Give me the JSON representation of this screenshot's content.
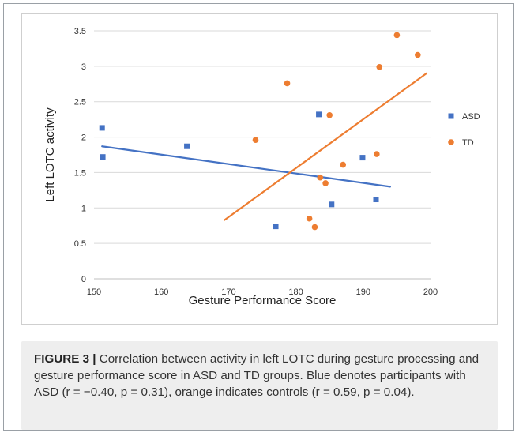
{
  "chart_data": {
    "type": "scatter",
    "xlabel": "Gesture Performance Score",
    "ylabel": "Left LOTC activity",
    "xlim": [
      150,
      200
    ],
    "ylim": [
      0,
      3.5
    ],
    "x_ticks": [
      150,
      160,
      170,
      180,
      190,
      200
    ],
    "y_ticks": [
      0,
      0.5,
      1,
      1.5,
      2,
      2.5,
      3,
      3.5
    ],
    "x_tick_labels": [
      "150",
      "160",
      "170",
      "180",
      "190",
      "200"
    ],
    "y_tick_labels": [
      "0",
      "0.5",
      "1",
      "1.5",
      "2",
      "2.5",
      "3",
      "3.5"
    ],
    "grid": "horizontal",
    "legend_position": "right",
    "series": [
      {
        "name": "ASD",
        "color": "#4472c4",
        "marker": "square",
        "points": [
          {
            "x": 151.2,
            "y": 2.13
          },
          {
            "x": 151.3,
            "y": 1.72
          },
          {
            "x": 163.8,
            "y": 1.87
          },
          {
            "x": 177.0,
            "y": 0.74
          },
          {
            "x": 183.4,
            "y": 2.32
          },
          {
            "x": 185.3,
            "y": 1.05
          },
          {
            "x": 189.9,
            "y": 1.71
          },
          {
            "x": 191.9,
            "y": 1.12
          }
        ],
        "trendline": {
          "x": [
            151.2,
            194.0
          ],
          "y": [
            1.87,
            1.3
          ]
        }
      },
      {
        "name": "TD",
        "color": "#ed7d31",
        "marker": "circle",
        "points": [
          {
            "x": 174.0,
            "y": 1.96
          },
          {
            "x": 178.7,
            "y": 2.76
          },
          {
            "x": 182.0,
            "y": 0.85
          },
          {
            "x": 182.8,
            "y": 0.73
          },
          {
            "x": 183.6,
            "y": 1.43
          },
          {
            "x": 184.4,
            "y": 1.35
          },
          {
            "x": 185.0,
            "y": 2.31
          },
          {
            "x": 187.0,
            "y": 1.61
          },
          {
            "x": 192.0,
            "y": 1.76
          },
          {
            "x": 192.4,
            "y": 2.99
          },
          {
            "x": 195.0,
            "y": 3.44
          },
          {
            "x": 198.1,
            "y": 3.16
          }
        ],
        "trendline": {
          "x": [
            169.4,
            199.4
          ],
          "y": [
            0.83,
            2.9
          ]
        }
      }
    ]
  },
  "caption": {
    "label": "FIGURE 3 |",
    "text": " Correlation between activity in left LOTC during gesture processing and gesture performance score in ASD and TD groups. Blue denotes participants with ASD (r = −0.40, p = 0.31), orange indicates controls (r = 0.59, p = 0.04)."
  }
}
